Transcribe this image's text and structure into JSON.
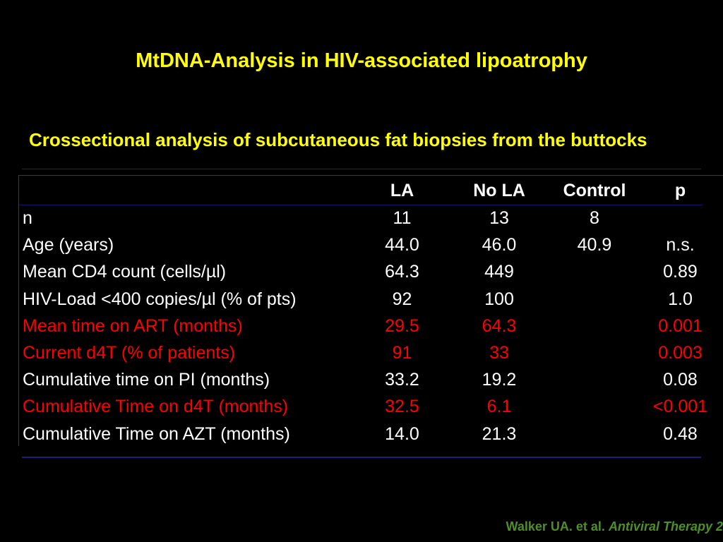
{
  "title": "MtDNA-Analysis in HIV-associated lipoatrophy",
  "subtitle": "Crossectional analysis of subcutaneous fat biopsies from the buttocks",
  "table": {
    "headers": [
      "",
      "LA",
      "No LA",
      "Control",
      "p"
    ],
    "rows": [
      {
        "label": "n",
        "la": "11",
        "nola": "13",
        "control": "8",
        "p": "",
        "highlight": false
      },
      {
        "label": "Age (years)",
        "la": "44.0",
        "nola": "46.0",
        "control": "40.9",
        "p": "n.s.",
        "highlight": false
      },
      {
        "label": "Mean CD4 count (cells/µl)",
        "la": "64.3",
        "nola": "449",
        "control": "",
        "p": "0.89",
        "highlight": false
      },
      {
        "label": "HIV-Load <400 copies/µl (% of pts)",
        "la": "92",
        "nola": "100",
        "control": "",
        "p": "1.0",
        "highlight": false
      },
      {
        "label": "Mean time on ART (months)",
        "la": "29.5",
        "nola": "64.3",
        "control": "",
        "p": "0.001",
        "highlight": true
      },
      {
        "label": "Current d4T (% of patients)",
        "la": "91",
        "nola": "33",
        "control": "",
        "p": "0.003",
        "highlight": true
      },
      {
        "label": "Cumulative time on PI (months)",
        "la": "33.2",
        "nola": "19.2",
        "control": "",
        "p": "0.08",
        "highlight": false
      },
      {
        "label": "Cumulative Time on d4T (months)",
        "la": "32.5",
        "nola": "6.1",
        "control": "",
        "p": "<0.001",
        "highlight": true
      },
      {
        "label": "Cumulative Time on AZT (months)",
        "la": "14.0",
        "nola": "21.3",
        "control": "",
        "p": "0.48",
        "highlight": false
      }
    ]
  },
  "citation": {
    "authors": "Walker UA. et al.",
    "journal": "Antiviral Therapy 2"
  },
  "colors": {
    "background": "#000000",
    "heading": "#ffff00",
    "text": "#ffffff",
    "highlight": "#ff0000",
    "citation": "#4e8f2a",
    "rule": "#1a1e7a"
  }
}
